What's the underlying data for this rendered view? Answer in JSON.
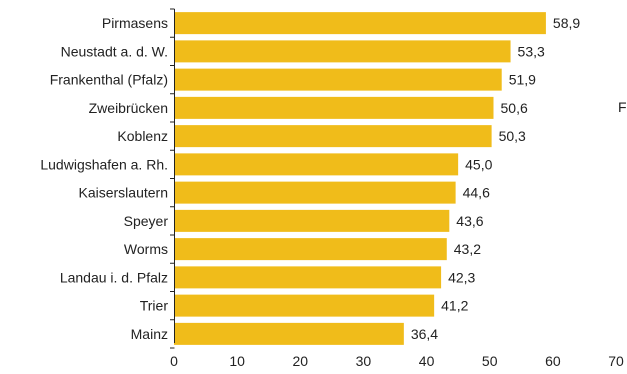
{
  "chart_data": {
    "type": "bar",
    "orientation": "horizontal",
    "categories": [
      "Pirmasens",
      "Neustadt a. d. W.",
      "Frankenthal (Pfalz)",
      "Zweibrücken",
      "Koblenz",
      "Ludwigshafen a. Rh.",
      "Kaiserslautern",
      "Speyer",
      "Worms",
      "Landau i. d. Pfalz",
      "Trier",
      "Mainz"
    ],
    "values": [
      58.9,
      53.3,
      51.9,
      50.6,
      50.3,
      45.0,
      44.6,
      43.6,
      43.2,
      42.3,
      41.2,
      36.4
    ],
    "value_labels": [
      "58,9",
      "53,3",
      "51,9",
      "50,6",
      "50,3",
      "45,0",
      "44,6",
      "43,6",
      "43,2",
      "42,3",
      "41,2",
      "36,4"
    ],
    "xlim": [
      0,
      70
    ],
    "xticks": [
      0,
      10,
      20,
      30,
      40,
      50,
      60,
      70
    ],
    "grid": false,
    "title": "",
    "xlabel": "",
    "ylabel": "",
    "bar_color": "#F0BC1A"
  },
  "stray_text": "F"
}
